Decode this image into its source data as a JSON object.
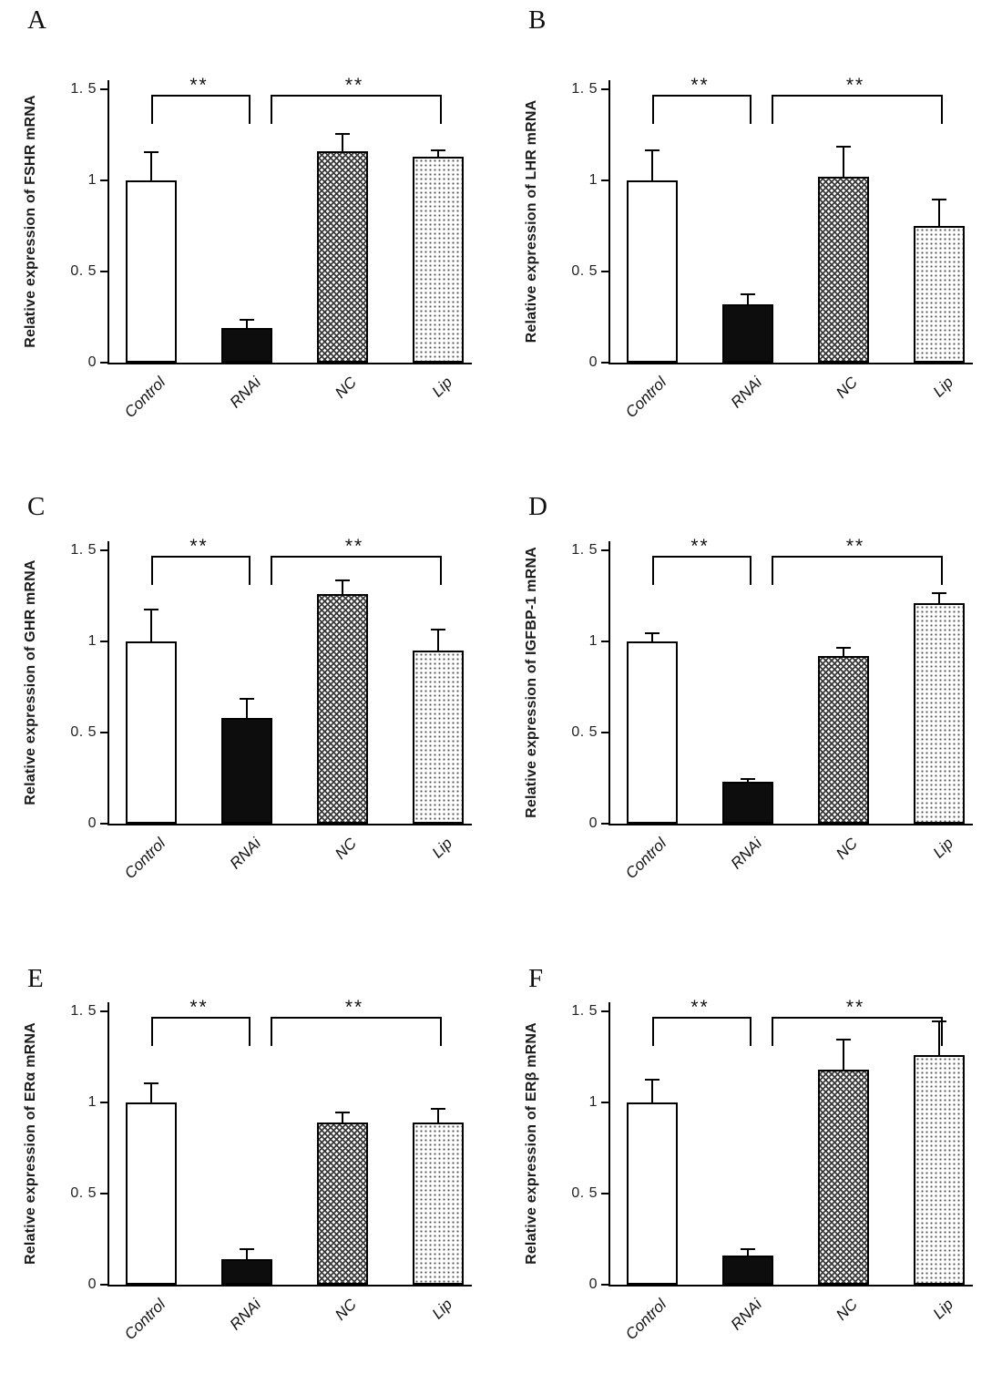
{
  "figure": {
    "background": "#ffffff",
    "axis_color": "#000000",
    "text_color": "#111111",
    "bar_fill_colors": {
      "white": "#ffffff",
      "black": "#0d0d0d",
      "crosshatch_dark": "#3a3a3a",
      "dots_light": "#555555"
    }
  },
  "chart_data": [
    {
      "type": "bar",
      "panel": "A",
      "title": "",
      "xlabel": "",
      "ylabel": "Relative expression of FSHR mRNA",
      "categories": [
        "Control",
        "RNAi",
        "NC",
        "Lip"
      ],
      "values": [
        1.0,
        0.19,
        1.16,
        1.13
      ],
      "errors": [
        0.15,
        0.04,
        0.09,
        0.03
      ],
      "bar_styles": [
        "white",
        "black",
        "crosshatch",
        "dots"
      ],
      "ylim": [
        0,
        1.55
      ],
      "yticks": [
        0,
        0.5,
        1,
        1.5
      ],
      "ytick_labels": [
        "0",
        "0. 5",
        "1",
        "1. 5"
      ],
      "grid": false,
      "legend": "none",
      "significance": [
        {
          "from": "Control",
          "to": "RNAi",
          "label": "**"
        },
        {
          "from": "RNAi",
          "to": "Lip",
          "label": "**"
        }
      ]
    },
    {
      "type": "bar",
      "panel": "B",
      "title": "",
      "xlabel": "",
      "ylabel": "Relative expression of LHR mRNA",
      "categories": [
        "Control",
        "RNAi",
        "NC",
        "Lip"
      ],
      "values": [
        1.0,
        0.32,
        1.02,
        0.75
      ],
      "errors": [
        0.16,
        0.05,
        0.16,
        0.14
      ],
      "bar_styles": [
        "white",
        "black",
        "crosshatch",
        "dots"
      ],
      "ylim": [
        0,
        1.55
      ],
      "yticks": [
        0,
        0.5,
        1,
        1.5
      ],
      "ytick_labels": [
        "0",
        "0. 5",
        "1",
        "1. 5"
      ],
      "grid": false,
      "legend": "none",
      "significance": [
        {
          "from": "Control",
          "to": "RNAi",
          "label": "**"
        },
        {
          "from": "RNAi",
          "to": "Lip",
          "label": "**"
        }
      ]
    },
    {
      "type": "bar",
      "panel": "C",
      "title": "",
      "xlabel": "",
      "ylabel": "Relative expression of GHR mRNA",
      "categories": [
        "Control",
        "RNAi",
        "NC",
        "Lip"
      ],
      "values": [
        1.0,
        0.58,
        1.26,
        0.95
      ],
      "errors": [
        0.17,
        0.1,
        0.07,
        0.11
      ],
      "bar_styles": [
        "white",
        "black",
        "crosshatch",
        "dots"
      ],
      "ylim": [
        0,
        1.55
      ],
      "yticks": [
        0,
        0.5,
        1,
        1.5
      ],
      "ytick_labels": [
        "0",
        "0. 5",
        "1",
        "1. 5"
      ],
      "grid": false,
      "legend": "none",
      "significance": [
        {
          "from": "Control",
          "to": "RNAi",
          "label": "**"
        },
        {
          "from": "RNAi",
          "to": "Lip",
          "label": "**"
        }
      ]
    },
    {
      "type": "bar",
      "panel": "D",
      "title": "",
      "xlabel": "",
      "ylabel": "Relative expression of IGFBP-1 mRNA",
      "categories": [
        "Control",
        "RNAi",
        "NC",
        "Lip"
      ],
      "values": [
        1.0,
        0.23,
        0.92,
        1.21
      ],
      "errors": [
        0.04,
        0.01,
        0.04,
        0.05
      ],
      "bar_styles": [
        "white",
        "black",
        "crosshatch",
        "dots"
      ],
      "ylim": [
        0,
        1.55
      ],
      "yticks": [
        0,
        0.5,
        1,
        1.5
      ],
      "ytick_labels": [
        "0",
        "0. 5",
        "1",
        "1. 5"
      ],
      "grid": false,
      "legend": "none",
      "significance": [
        {
          "from": "Control",
          "to": "RNAi",
          "label": "**"
        },
        {
          "from": "RNAi",
          "to": "Lip",
          "label": "**"
        }
      ]
    },
    {
      "type": "bar",
      "panel": "E",
      "title": "",
      "xlabel": "",
      "ylabel": "Relative expression of ERα mRNA",
      "categories": [
        "Control",
        "RNAi",
        "NC",
        "Lip"
      ],
      "values": [
        1.0,
        0.14,
        0.89,
        0.89
      ],
      "errors": [
        0.1,
        0.05,
        0.05,
        0.07
      ],
      "bar_styles": [
        "white",
        "black",
        "crosshatch",
        "dots"
      ],
      "ylim": [
        0,
        1.55
      ],
      "yticks": [
        0,
        0.5,
        1,
        1.5
      ],
      "ytick_labels": [
        "0",
        "0. 5",
        "1",
        "1. 5"
      ],
      "grid": false,
      "legend": "none",
      "significance": [
        {
          "from": "Control",
          "to": "RNAi",
          "label": "**"
        },
        {
          "from": "RNAi",
          "to": "Lip",
          "label": "**"
        }
      ]
    },
    {
      "type": "bar",
      "panel": "F",
      "title": "",
      "xlabel": "",
      "ylabel": "Relative expression of ERβ mRNA",
      "categories": [
        "Control",
        "RNAi",
        "NC",
        "Lip"
      ],
      "values": [
        1.0,
        0.16,
        1.18,
        1.26
      ],
      "errors": [
        0.12,
        0.03,
        0.16,
        0.18
      ],
      "bar_styles": [
        "white",
        "black",
        "crosshatch",
        "dots"
      ],
      "ylim": [
        0,
        1.55
      ],
      "yticks": [
        0,
        0.5,
        1,
        1.5
      ],
      "ytick_labels": [
        "0",
        "0. 5",
        "1",
        "1. 5"
      ],
      "grid": false,
      "legend": "none",
      "significance": [
        {
          "from": "Control",
          "to": "RNAi",
          "label": "**"
        },
        {
          "from": "RNAi",
          "to": "Lip",
          "label": "**"
        }
      ]
    }
  ]
}
